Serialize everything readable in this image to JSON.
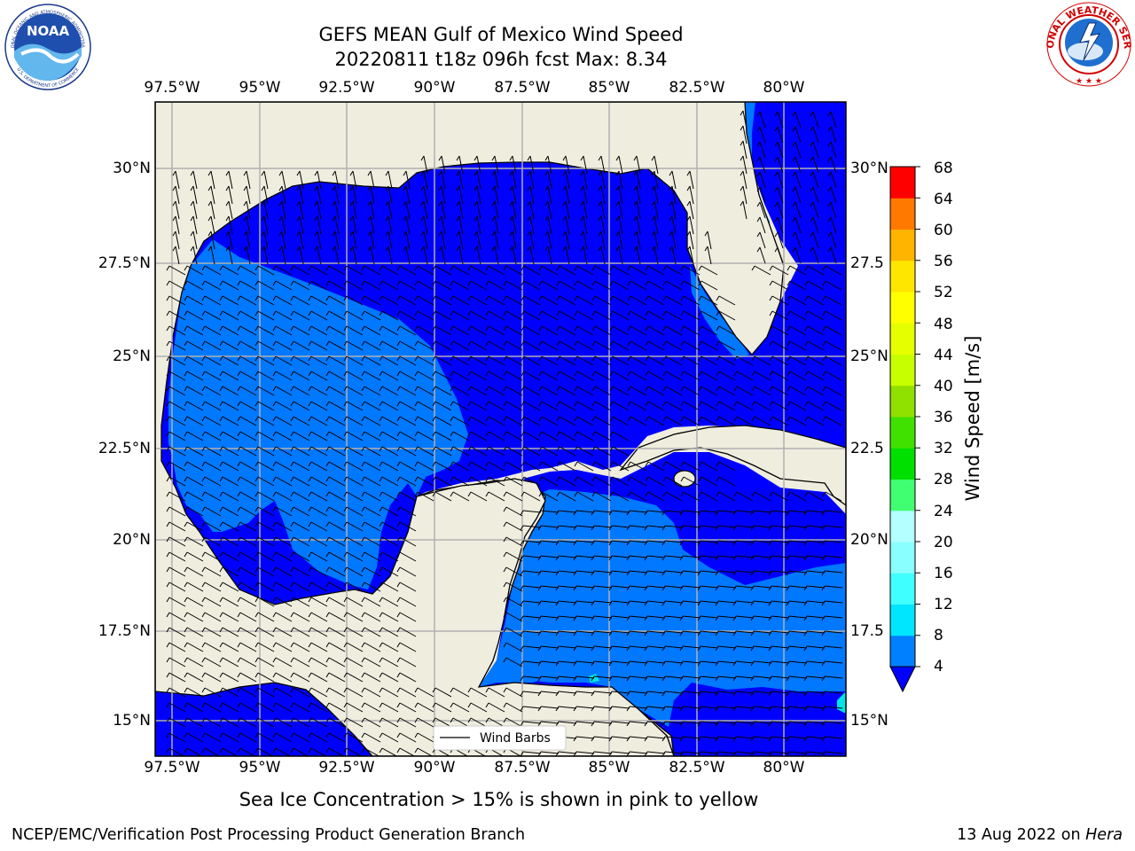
{
  "header": {
    "title_line1": "GEFS MEAN Gulf of Mexico Wind Speed",
    "title_line2": "20220811 t18z 096h fcst   Max: 8.34"
  },
  "logos": {
    "left": {
      "name": "NOAA",
      "ring_text": "NATIONAL OCEANIC AND ATMOSPHERIC ADMINISTRATION",
      "ring_text_bottom": "U.S. DEPARTMENT OF COMMERCE"
    },
    "right": {
      "ring_text": "NATIONAL WEATHER SERVICE"
    }
  },
  "map": {
    "lon_ticks": [
      "97.5°W",
      "95°W",
      "92.5°W",
      "90°W",
      "87.5°W",
      "85°W",
      "82.5°W",
      "80°W"
    ],
    "lat_ticks_left": [
      "30°N",
      "27.5°N",
      "25°N",
      "22.5°N",
      "20°N",
      "17.5°N",
      "15°N"
    ],
    "lat_ticks_right": [
      "30°N",
      "27.5",
      "25°N",
      "22.5",
      "20°N",
      "17.5",
      "15°N"
    ],
    "legend_label": "Wind Barbs",
    "colors": {
      "land": "#efedde",
      "band_4_8": "#0000ff",
      "band_8_12": "#0078ff",
      "band_12_16": "#00e6e6",
      "grid": "#b0b0b0"
    }
  },
  "colorbar": {
    "label": "Wind Speed [m/s]",
    "ticks": [
      "68",
      "64",
      "60",
      "56",
      "52",
      "48",
      "44",
      "40",
      "36",
      "32",
      "28",
      "24",
      "20",
      "16",
      "12",
      "8",
      "4"
    ],
    "colors": [
      "#0000ff",
      "#0080ff",
      "#00e6ff",
      "#40ffff",
      "#8affff",
      "#b4ffff",
      "#40ff70",
      "#00e000",
      "#40e000",
      "#90e000",
      "#c8ff00",
      "#e6ff00",
      "#ffff00",
      "#ffe600",
      "#ffb400",
      "#ff9600",
      "#ff7800",
      "#ff5000",
      "#ff2800",
      "#ff0000"
    ]
  },
  "footer": {
    "note": "Sea Ice Concentration > 15% is shown in pink to yellow",
    "credit": "NCEP/EMC/Verification Post Processing Product Generation Branch",
    "date": "13 Aug 2022 on",
    "machine": "Hera"
  }
}
